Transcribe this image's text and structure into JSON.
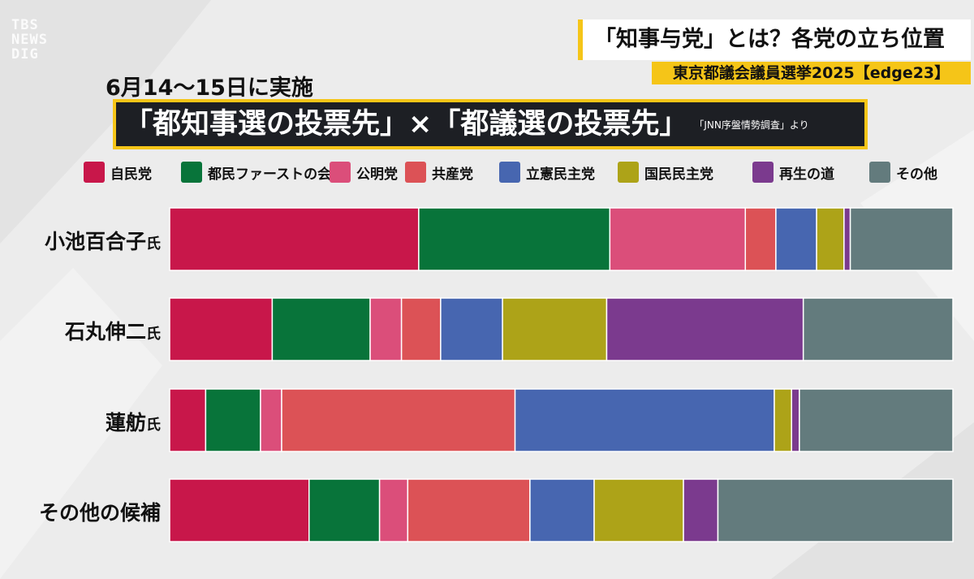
{
  "watermark": [
    "TBS",
    "NEWS",
    "DIG"
  ],
  "header": {
    "corner_title": "「知事与党」とは？各党の立ち位置",
    "corner_subtitle": "東京都議会議員選挙2025【edge23】",
    "date": "6月14〜15日に実施",
    "main_title": "「都知事選の投票先」×「都議選の投票先」",
    "source": "「JNN序盤情勢調査」より"
  },
  "colors": {
    "自民党": "#c8174a",
    "都民ファーストの会": "#08743a",
    "公明党": "#db4e7a",
    "共産党": "#dc5256",
    "立憲民主党": "#4766b0",
    "国民民主党": "#ada318",
    "再生の道": "#7b3a8e",
    "その他": "#637b7d"
  },
  "chart_data": {
    "type": "bar",
    "orientation": "horizontal",
    "stacked": true,
    "normalized": true,
    "title": "「都知事選の投票先」×「都議選の投票先」",
    "categories": [
      {
        "name": "小池百合子",
        "suffix": "氏"
      },
      {
        "name": "石丸伸二",
        "suffix": "氏"
      },
      {
        "name": "蓮舫",
        "suffix": "氏"
      },
      {
        "name": "その他の候補",
        "suffix": ""
      }
    ],
    "series": [
      {
        "name": "自民党",
        "values": [
          31.8,
          13.1,
          4.6,
          17.8
        ]
      },
      {
        "name": "都民ファーストの会",
        "values": [
          24.4,
          12.5,
          7.0,
          9.0
        ]
      },
      {
        "name": "公明党",
        "values": [
          17.3,
          4.0,
          2.7,
          3.6
        ]
      },
      {
        "name": "共産党",
        "values": [
          3.9,
          5.0,
          29.8,
          15.6
        ]
      },
      {
        "name": "立憲民主党",
        "values": [
          5.2,
          7.9,
          33.1,
          8.2
        ]
      },
      {
        "name": "国民民主党",
        "values": [
          3.5,
          13.3,
          2.2,
          11.4
        ]
      },
      {
        "name": "再生の道",
        "values": [
          0.8,
          25.1,
          1.0,
          4.4
        ]
      },
      {
        "name": "その他",
        "values": [
          13.1,
          19.1,
          19.6,
          30.0
        ]
      }
    ],
    "legend_position": "top",
    "xlim": [
      0,
      100
    ],
    "grid": false
  }
}
